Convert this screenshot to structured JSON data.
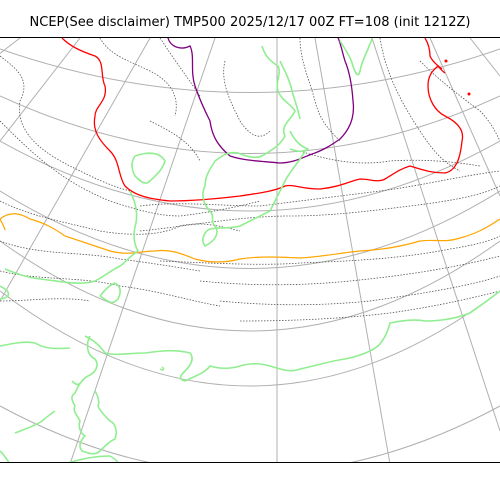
{
  "title": "NCEP(See disclaimer) TMP500 2025/12/17 00Z FT=108 (init 1212Z)",
  "colors": {
    "graticule": "#b0b0b0",
    "coastline": "#90ee90",
    "isotherm_dotted": "#555555",
    "isotherm_red": "#ff0000",
    "isotherm_purple": "#800080",
    "isotherm_orange": "#ffa500"
  }
}
